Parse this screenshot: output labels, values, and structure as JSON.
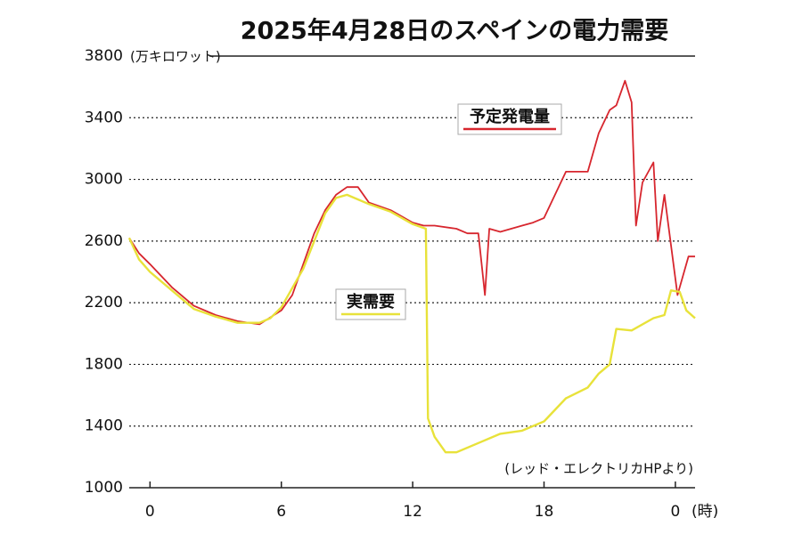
{
  "chart_data": {
    "type": "line",
    "title": "2025年4月28日のスペインの電力需要",
    "y_label": "(万キロワット)",
    "x_label": "(時)",
    "source": "(レッド・エレクトリカHPより)",
    "xlim": [
      -0.95,
      24.9
    ],
    "xticks": [
      0,
      6,
      12,
      18,
      {
        "value": 24,
        "label": "0"
      }
    ],
    "ylim": [
      1000,
      3800
    ],
    "yticks": [
      1000,
      1400,
      1800,
      2200,
      2600,
      3000,
      3400,
      3800
    ],
    "grid": true,
    "series": [
      {
        "name": "予定発電量",
        "color": "#d7262e",
        "x": [
          -0.95,
          -0.5,
          0,
          1,
          2,
          3,
          4,
          5,
          6,
          6.5,
          7,
          7.5,
          8,
          8.5,
          9,
          9.5,
          10,
          11,
          12,
          12.5,
          13,
          14,
          14.5,
          15,
          15.3,
          15.5,
          16,
          17,
          17.5,
          18,
          18.5,
          19,
          20,
          20.5,
          21,
          21.3,
          21.7,
          22,
          22.2,
          22.5,
          23,
          23.2,
          23.5,
          24.1,
          24.6,
          24.9
        ],
        "values": [
          2620,
          2520,
          2450,
          2300,
          2180,
          2120,
          2080,
          2060,
          2150,
          2250,
          2450,
          2650,
          2800,
          2900,
          2950,
          2950,
          2850,
          2800,
          2720,
          2700,
          2700,
          2680,
          2650,
          2650,
          2250,
          2680,
          2660,
          2700,
          2720,
          2750,
          2900,
          3050,
          3050,
          3300,
          3450,
          3480,
          3640,
          3500,
          2700,
          2980,
          3110,
          2600,
          2900,
          2250,
          2500,
          2500
        ]
      },
      {
        "name": "実需要",
        "color": "#e8e23a",
        "x": [
          -0.95,
          -0.5,
          0,
          1,
          2,
          3,
          4,
          5,
          5.5,
          6,
          7,
          7.5,
          8,
          8.5,
          9,
          10,
          11,
          12,
          12.6,
          12.7,
          13,
          13.5,
          14,
          15,
          16,
          17,
          18,
          19,
          20,
          20.5,
          21,
          21.3,
          22,
          23,
          23.5,
          23.8,
          24.2,
          24.5,
          24.9
        ],
        "values": [
          2620,
          2480,
          2400,
          2280,
          2160,
          2110,
          2070,
          2070,
          2100,
          2170,
          2420,
          2600,
          2780,
          2880,
          2900,
          2840,
          2790,
          2710,
          2680,
          1450,
          1330,
          1230,
          1230,
          1290,
          1350,
          1370,
          1430,
          1580,
          1650,
          1740,
          1800,
          2030,
          2020,
          2100,
          2120,
          2280,
          2270,
          2150,
          2100
        ]
      }
    ]
  }
}
